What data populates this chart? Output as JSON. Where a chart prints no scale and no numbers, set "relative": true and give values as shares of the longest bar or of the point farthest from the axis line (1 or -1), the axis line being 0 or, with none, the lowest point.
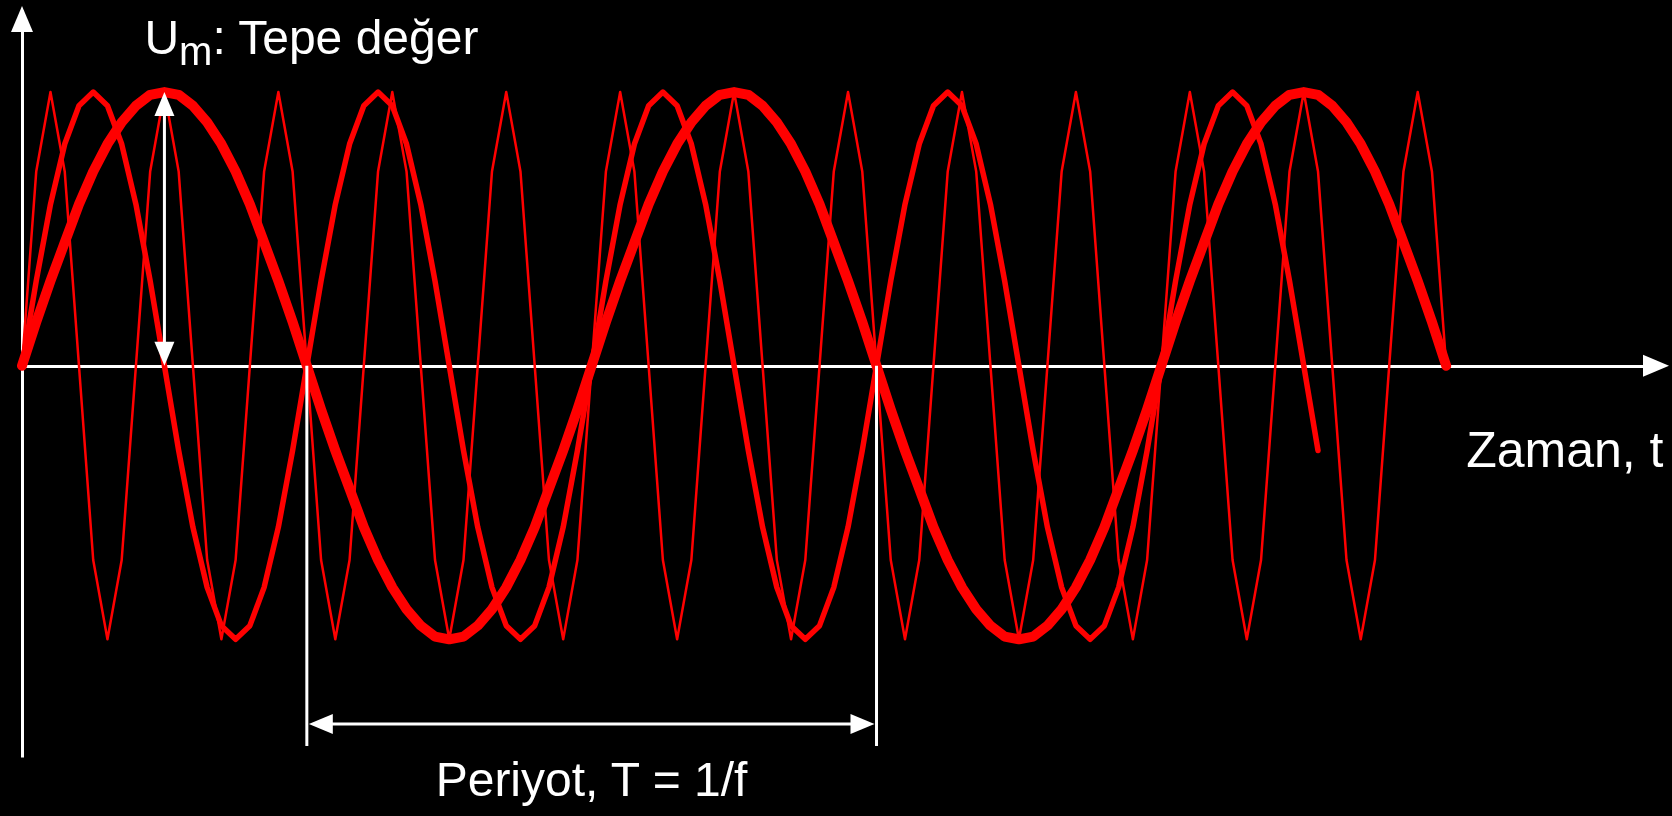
{
  "chart_data": {
    "type": "line",
    "relative": true,
    "xlabel": "Zaman, t",
    "annotations": [
      "U$_{m}$: Tepe değer",
      "Periyot, T = 1/f"
    ],
    "categories": [
      null,
      null,
      null,
      null,
      null,
      null,
      null,
      null,
      null,
      null,
      null,
      null,
      null,
      null,
      null,
      null,
      null,
      null,
      null,
      null,
      null,
      null,
      null,
      null,
      null,
      null,
      null,
      null,
      null,
      null,
      null,
      null,
      null,
      null,
      null,
      null,
      null,
      null,
      null,
      null,
      null,
      null,
      null,
      null,
      null,
      null,
      null,
      null,
      null,
      null,
      null,
      null,
      null,
      null,
      null,
      null,
      null,
      null,
      null,
      null,
      null,
      null,
      null,
      null,
      null,
      null,
      null,
      null,
      null,
      null,
      null,
      null,
      null,
      null,
      null,
      null,
      null,
      null,
      null,
      null,
      null,
      null,
      null,
      null,
      null,
      null,
      null,
      null,
      null,
      null,
      null,
      null,
      null,
      null,
      null,
      null,
      null,
      null,
      null,
      null,
      null
    ],
    "series": [
      {
        "color": "#ff0000",
        "values": [
          0,
          0.71,
          1,
          0.71,
          0,
          -0.71,
          -1,
          -0.71,
          0,
          0.71,
          1,
          0.71,
          0,
          -0.71,
          -1,
          -0.71,
          0,
          0.71,
          1,
          0.71,
          0,
          -0.71,
          -1,
          -0.71,
          0,
          0.71,
          1,
          0.71,
          0,
          -0.71,
          -1,
          -0.71,
          0,
          0.71,
          1,
          0.71,
          0,
          -0.71,
          -1,
          -0.71,
          0,
          0.71,
          1,
          0.71,
          0,
          -0.71,
          -1,
          -0.71,
          0,
          0.71,
          1,
          0.71,
          0,
          -0.71,
          -1,
          -0.71,
          0,
          0.71,
          1,
          0.71,
          0,
          -0.71,
          -1,
          -0.71,
          0,
          0.71,
          1,
          0.71,
          0,
          -0.71,
          -1,
          -0.71,
          0,
          0.71,
          1,
          0.71,
          0,
          -0.71,
          -1,
          -0.71,
          0,
          0.71,
          1,
          0.71,
          0,
          -0.71,
          -1,
          -0.71,
          0,
          0.71,
          1,
          0.71,
          0,
          -0.71,
          -1,
          -0.71,
          0,
          0.71,
          1,
          0.71,
          0
        ]
      },
      {
        "color": "#ff0000",
        "values": [
          0,
          0.31,
          0.59,
          0.81,
          0.95,
          1,
          0.95,
          0.81,
          0.59,
          0.31,
          0,
          -0.31,
          -0.59,
          -0.81,
          -0.95,
          -1,
          -0.95,
          -0.81,
          -0.59,
          -0.31,
          0,
          0.31,
          0.59,
          0.81,
          0.95,
          1,
          0.95,
          0.81,
          0.59,
          0.31,
          0,
          -0.31,
          -0.59,
          -0.81,
          -0.95,
          -1,
          -0.95,
          -0.81,
          -0.59,
          -0.31,
          0,
          0.31,
          0.59,
          0.81,
          0.95,
          1,
          0.95,
          0.81,
          0.59,
          0.31,
          0,
          -0.31,
          -0.59,
          -0.81,
          -0.95,
          -1,
          -0.95,
          -0.81,
          -0.59,
          -0.31,
          0,
          0.31,
          0.59,
          0.81,
          0.95,
          1,
          0.95,
          0.81,
          0.59,
          0.31,
          0,
          -0.31,
          -0.59,
          -0.81,
          -0.95,
          -1,
          -0.95,
          -0.81,
          -0.59,
          -0.31,
          0,
          0.31,
          0.59,
          0.81,
          0.95,
          1,
          0.95,
          0.81,
          0.59,
          0.31,
          0,
          -0.31,
          null,
          null,
          null,
          null,
          null,
          null,
          null,
          null,
          null
        ]
      },
      {
        "color": "#ff0000",
        "values": [
          0,
          0.16,
          0.31,
          0.45,
          0.59,
          0.71,
          0.81,
          0.89,
          0.95,
          0.99,
          1,
          0.99,
          0.95,
          0.89,
          0.81,
          0.71,
          0.59,
          0.45,
          0.31,
          0.16,
          0,
          -0.16,
          -0.31,
          -0.45,
          -0.59,
          -0.71,
          -0.81,
          -0.89,
          -0.95,
          -0.99,
          -1,
          -0.99,
          -0.95,
          -0.89,
          -0.81,
          -0.71,
          -0.59,
          -0.45,
          -0.31,
          -0.16,
          0,
          0.16,
          0.31,
          0.45,
          0.59,
          0.71,
          0.81,
          0.89,
          0.95,
          0.99,
          1,
          0.99,
          0.95,
          0.89,
          0.81,
          0.71,
          0.59,
          0.45,
          0.31,
          0.16,
          0,
          -0.16,
          -0.31,
          -0.45,
          -0.59,
          -0.71,
          -0.81,
          -0.89,
          -0.95,
          -0.99,
          -1,
          -0.99,
          -0.95,
          -0.89,
          -0.81,
          -0.71,
          -0.59,
          -0.45,
          -0.31,
          -0.16,
          0,
          0.16,
          0.31,
          0.45,
          0.59,
          0.71,
          0.81,
          0.89,
          0.95,
          0.99,
          1,
          0.99,
          0.95,
          0.89,
          0.81,
          0.71,
          0.59,
          0.45,
          0.31,
          0.16,
          0
        ]
      }
    ]
  }
}
